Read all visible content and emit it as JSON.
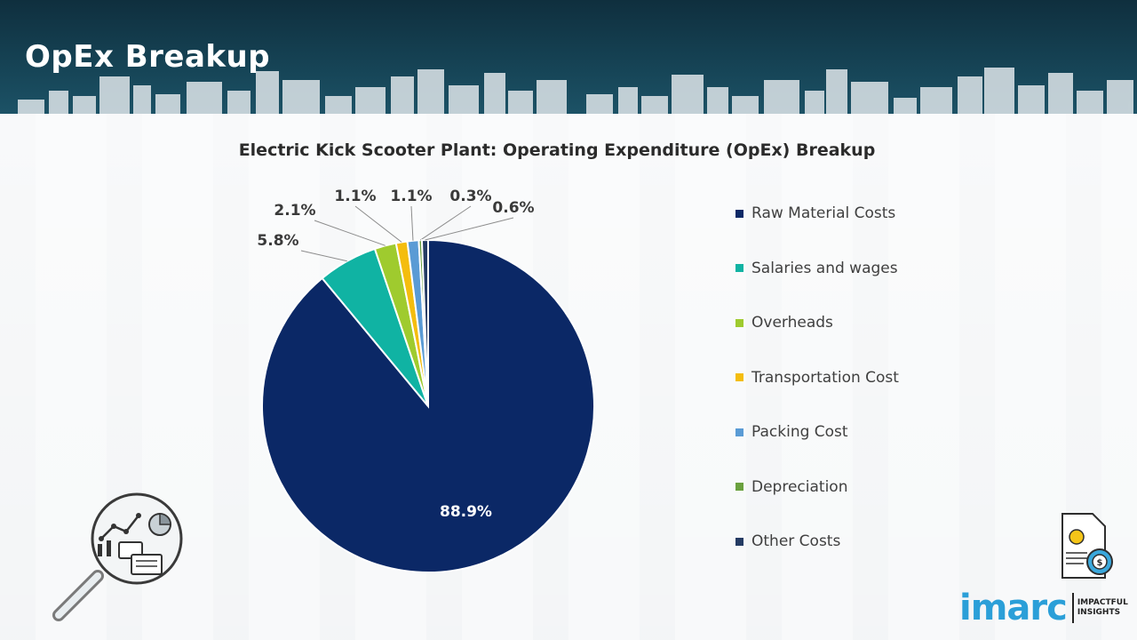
{
  "header": {
    "title": "OpEx Breakup"
  },
  "chart_data": {
    "type": "pie",
    "title": "Electric Kick Scooter Plant: Operating Expenditure (OpEx) Breakup",
    "slices": [
      {
        "label": "Raw Material Costs",
        "value": 88.9,
        "display": "88.9%",
        "color": "#0b2866"
      },
      {
        "label": "Salaries and wages",
        "value": 5.8,
        "display": "5.8%",
        "color": "#10b3a3"
      },
      {
        "label": "Overheads",
        "value": 2.1,
        "display": "2.1%",
        "color": "#9fcb2e"
      },
      {
        "label": "Transportation Cost",
        "value": 1.1,
        "display": "1.1%",
        "color": "#f4bd0e"
      },
      {
        "label": "Packing Cost",
        "value": 1.1,
        "display": "1.1%",
        "color": "#5a9bd5"
      },
      {
        "label": "Depreciation",
        "value": 0.3,
        "display": "0.3%",
        "color": "#6aa13e"
      },
      {
        "label": "Other Costs",
        "value": 0.6,
        "display": "0.6%",
        "color": "#243b63"
      }
    ],
    "legend_position": "right"
  },
  "logo": {
    "word": "imarc",
    "tagline_1": "IMPACTFUL",
    "tagline_2": "INSIGHTS"
  },
  "icons": {
    "left": "analytics-magnifier-icon",
    "right": "finance-document-icon"
  }
}
